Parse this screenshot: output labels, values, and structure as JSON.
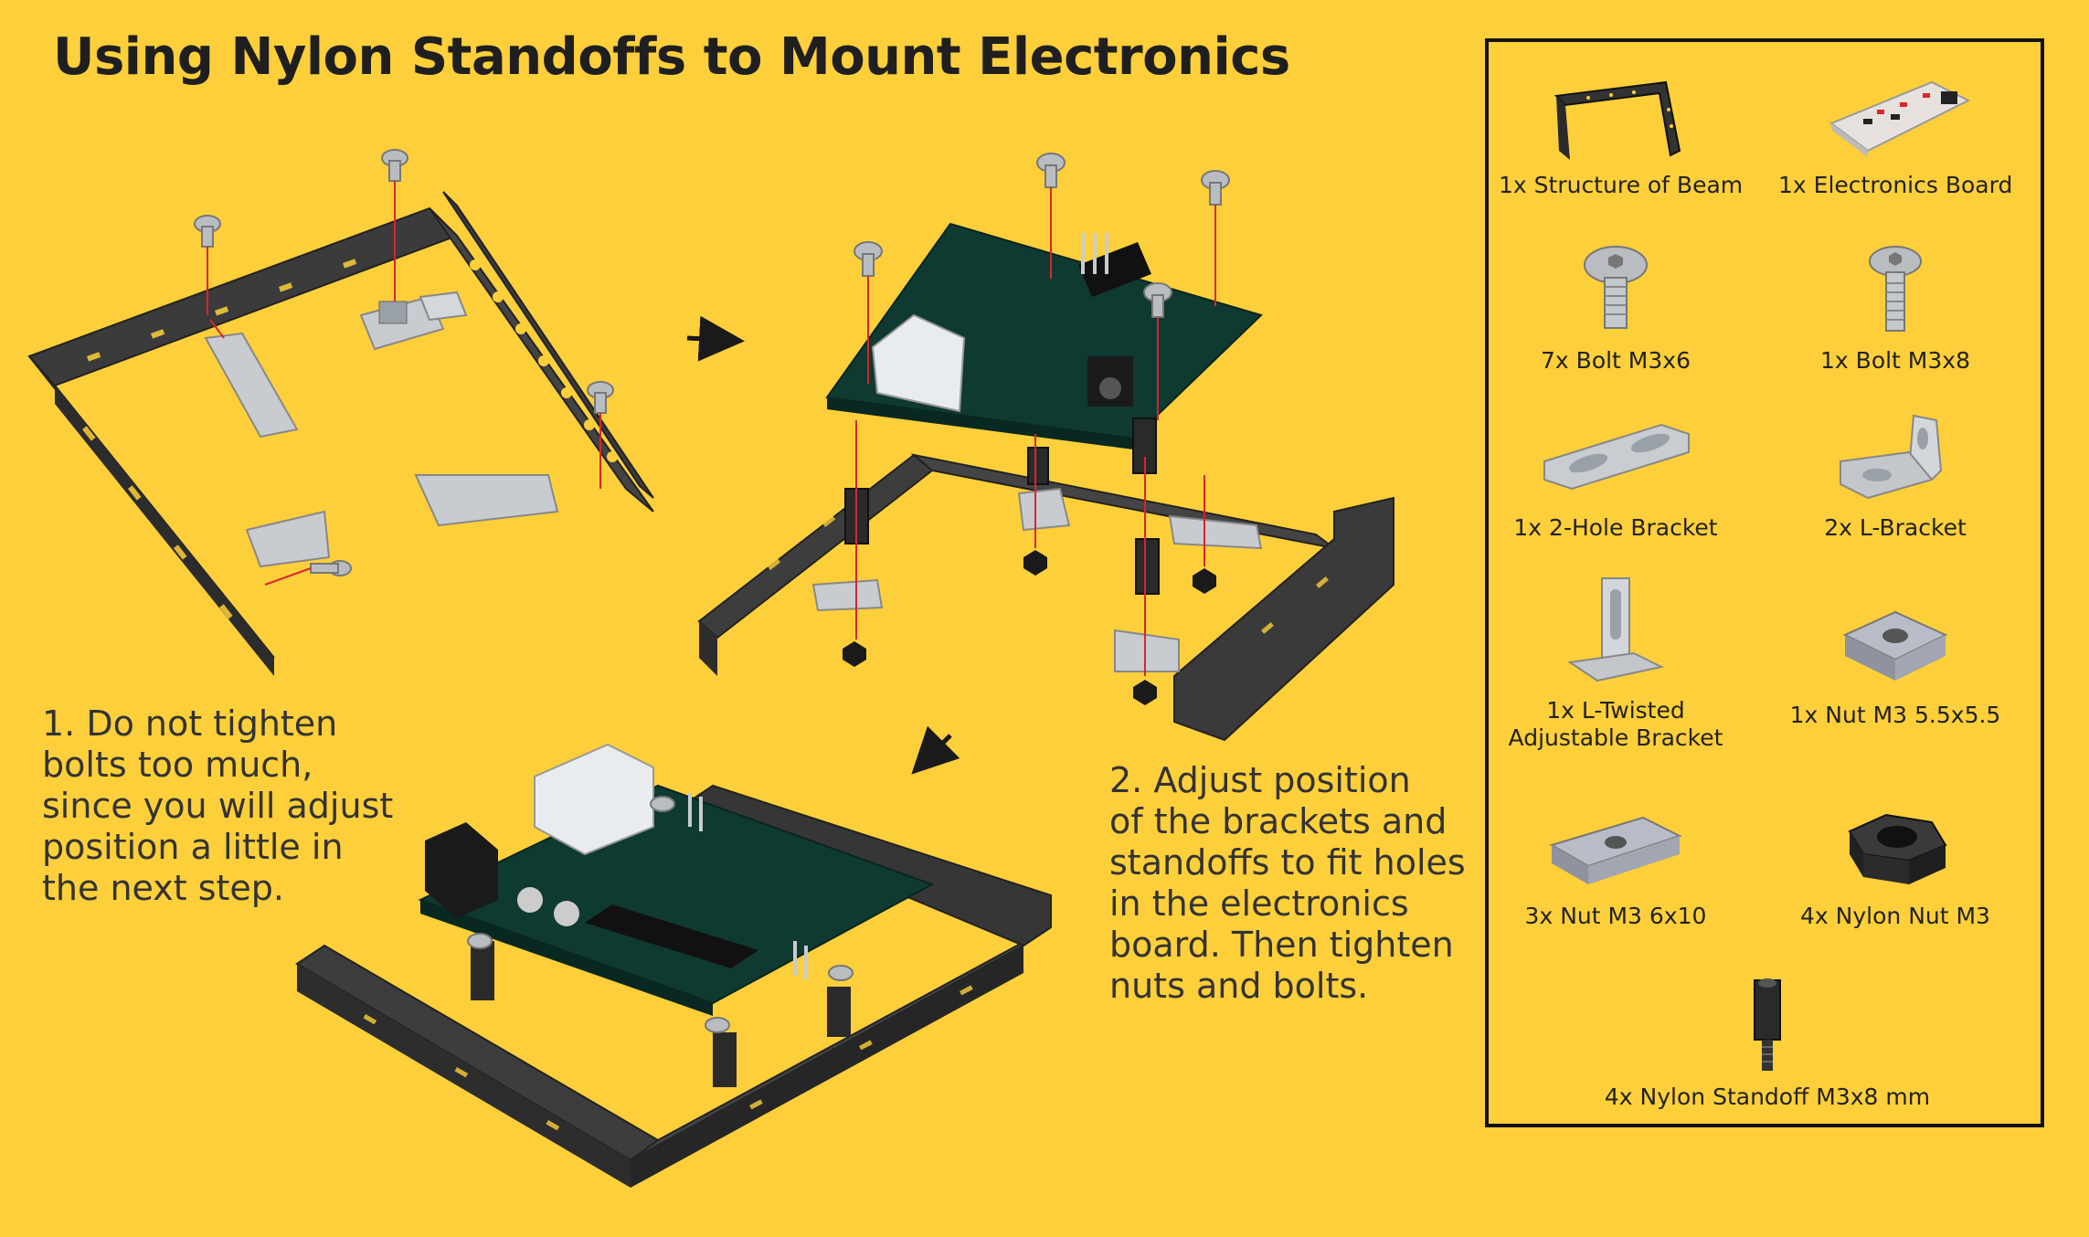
{
  "title": "Using Nylon Standoffs to Mount Electronics",
  "step1": {
    "lines": [
      "1. Do not tighten",
      "bolts too much,",
      "since you will adjust",
      "position a little in",
      "the next step."
    ]
  },
  "step2": {
    "lines": [
      "2. Adjust position",
      "of the brackets and",
      "standoffs to fit holes",
      "in the electronics",
      "board. Then tighten",
      "nuts and bolts."
    ]
  },
  "parts": [
    {
      "label": "1x Structure of Beam",
      "icon": "beam-structure-icon"
    },
    {
      "label": "1x Electronics Board",
      "icon": "electronics-board-icon"
    },
    {
      "label": "7x Bolt M3x6",
      "icon": "bolt-icon"
    },
    {
      "label": "1x Bolt M3x8",
      "icon": "bolt-icon"
    },
    {
      "label": "1x 2-Hole Bracket",
      "icon": "two-hole-bracket-icon"
    },
    {
      "label": "2x L-Bracket",
      "icon": "l-bracket-icon"
    },
    {
      "label": "1x L-Twisted",
      "label2": "Adjustable Bracket",
      "icon": "l-twisted-bracket-icon"
    },
    {
      "label": "1x Nut M3 5.5x5.5",
      "icon": "square-nut-icon"
    },
    {
      "label": "3x Nut M3 6x10",
      "icon": "rect-nut-icon"
    },
    {
      "label": "4x Nylon Nut M3",
      "icon": "hex-nut-icon"
    },
    {
      "label": "4x Nylon Standoff M3x8 mm",
      "icon": "standoff-icon"
    }
  ],
  "colors": {
    "background": "#FDCF3A",
    "beam": "#3a3a3a",
    "pcb": "#123d33",
    "metal": "#c9ccd0",
    "guide": "#d7262c"
  }
}
